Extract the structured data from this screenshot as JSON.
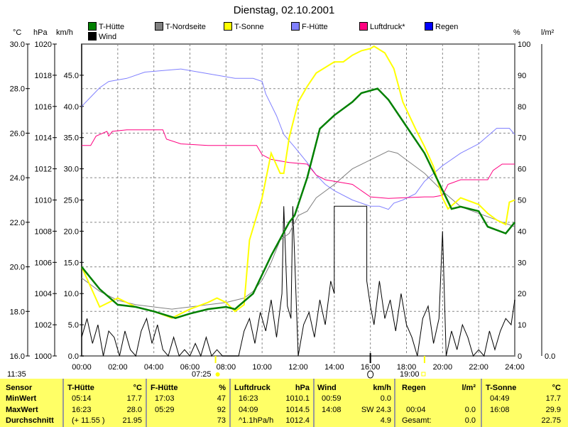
{
  "title": "Dienstag, 02.10.2001",
  "axis_units": {
    "c": "°C",
    "hpa": "hPa",
    "kmh": "km/h",
    "pct": "%",
    "lm2": "l/m²"
  },
  "legend": [
    {
      "label": "T-Hütte",
      "color": "#008000"
    },
    {
      "label": "T-Nordseite",
      "color": "#808080"
    },
    {
      "label": "T-Sonne",
      "color": "#ffff00"
    },
    {
      "label": "F-Hütte",
      "color": "#8080ff"
    },
    {
      "label": "Luftdruck*",
      "color": "#ff0080"
    },
    {
      "label": "Regen",
      "color": "#0000ff"
    },
    {
      "label": "Wind",
      "color": "#000000"
    }
  ],
  "time_left": "11:35",
  "sunrise": "07:25",
  "sunset": "19:00",
  "chart_data": {
    "type": "line",
    "title": "Dienstag, 02.10.2001",
    "x_ticks": [
      "00:00",
      "02:00",
      "04:00",
      "06:00",
      "08:00",
      "10:00",
      "12:00",
      "14:00",
      "16:00",
      "18:00",
      "20:00",
      "22:00",
      "24:00"
    ],
    "xlim": [
      0,
      24
    ],
    "axes": {
      "c": {
        "range": [
          16,
          30
        ],
        "ticks": [
          "30.0",
          "28.0",
          "26.0",
          "24.0",
          "22.0",
          "20.0",
          "18.0",
          "16.0"
        ]
      },
      "hpa": {
        "range": [
          1000,
          1020
        ],
        "ticks": [
          "1020",
          "1018",
          "1016",
          "1014",
          "1012",
          "1010",
          "1008",
          "1006",
          "1004",
          "1002",
          "1000"
        ]
      },
      "kmh": {
        "range": [
          0,
          50
        ],
        "ticks": [
          "45.0",
          "40.0",
          "35.0",
          "30.0",
          "25.0",
          "20.0",
          "15.0",
          "10.0",
          "5.0",
          "0.0"
        ]
      },
      "pct": {
        "range": [
          0,
          100
        ],
        "ticks": [
          "100",
          "90",
          "80",
          "70",
          "60",
          "50",
          "40",
          "30",
          "20",
          "10",
          "0"
        ]
      },
      "lm2": {
        "ticks": [
          "0.0"
        ]
      }
    },
    "series": [
      {
        "name": "T-Nordseite",
        "axis": "c",
        "color": "#808080",
        "x": [
          0,
          1,
          2,
          3,
          4,
          5,
          6,
          7,
          8,
          9,
          9.5,
          10,
          10.5,
          11,
          11.5,
          12,
          12.5,
          13,
          14,
          15,
          16,
          17,
          17.5,
          18,
          19,
          20,
          21,
          22,
          23,
          24
        ],
        "y": [
          19.5,
          18.9,
          18.5,
          18.3,
          18.2,
          18.1,
          18.2,
          18.3,
          18.4,
          18.6,
          18.9,
          19.4,
          20.2,
          21.2,
          21.5,
          22.3,
          22.5,
          23.1,
          23.7,
          24.4,
          24.8,
          25.2,
          25.1,
          24.8,
          24.2,
          23.4,
          22.7,
          22.4,
          22.1,
          21.8
        ]
      },
      {
        "name": "F-Hütte",
        "axis": "pct",
        "color": "#8080ff",
        "x": [
          0,
          1,
          1.5,
          2.5,
          3.5,
          5.5,
          6.5,
          7.5,
          8.5,
          9.5,
          10,
          10.2,
          10.8,
          11.2,
          11.8,
          12.5,
          13,
          13.5,
          14,
          15,
          16,
          16.5,
          17,
          17.3,
          17.8,
          18.5,
          19,
          20,
          21,
          22,
          23,
          23.7,
          24
        ],
        "y": [
          80,
          86,
          88,
          89,
          91,
          92,
          91,
          90,
          89,
          89,
          88,
          84,
          77,
          71,
          67,
          62,
          58,
          55,
          53,
          50,
          48,
          48,
          47,
          49,
          50,
          52,
          56,
          61,
          65,
          68,
          73,
          73,
          71
        ]
      },
      {
        "name": "Luftdruck*",
        "axis": "hpa",
        "color": "#ff0080",
        "x": [
          0,
          0.5,
          0.8,
          1.4,
          1.5,
          1.7,
          2.5,
          4.5,
          4.7,
          5.5,
          7,
          9,
          9.7,
          10,
          10.5,
          11.5,
          12.5,
          13,
          13.5,
          15,
          16,
          17,
          19,
          19.5,
          20,
          20.3,
          21,
          22.5,
          22.8,
          23.3,
          24
        ],
        "y": [
          1013.5,
          1013.5,
          1014.1,
          1014.4,
          1014.1,
          1014.4,
          1014.5,
          1014.5,
          1013.9,
          1013.6,
          1013.5,
          1013.5,
          1013.5,
          1012.9,
          1012.6,
          1012.4,
          1012.3,
          1011.6,
          1011.3,
          1011.0,
          1010.2,
          1010.1,
          1010.2,
          1010.2,
          1010.3,
          1011.0,
          1011.3,
          1011.3,
          1011.9,
          1012.3,
          1012.3
        ]
      },
      {
        "name": "T-Sonne",
        "axis": "c",
        "color": "#ffff00",
        "x": [
          0,
          1,
          2,
          3,
          4,
          5,
          6,
          7,
          7.5,
          8,
          8.5,
          9,
          9.3,
          10,
          10.5,
          11,
          11.2,
          11.5,
          12,
          12.5,
          13,
          14,
          14.5,
          15,
          15.5,
          16,
          16.2,
          16.8,
          17.3,
          17.8,
          18.5,
          19,
          19.5,
          20,
          20.3,
          21,
          22,
          22.5,
          23,
          23.5,
          23.7,
          24
        ],
        "y": [
          20.0,
          18.2,
          18.6,
          18.2,
          18.0,
          17.7,
          18.1,
          18.4,
          18.6,
          18.4,
          18.0,
          18.3,
          21.2,
          23.1,
          25.1,
          24.2,
          24.2,
          25.8,
          27.4,
          28.1,
          28.7,
          29.2,
          29.2,
          29.5,
          29.7,
          29.8,
          29.9,
          29.6,
          28.9,
          27.4,
          26.2,
          25.4,
          24.5,
          23.1,
          22.6,
          23.1,
          22.8,
          22.4,
          22.1,
          21.9,
          22.9,
          23.0
        ]
      },
      {
        "name": "T-Hütte",
        "axis": "c",
        "color": "#008000",
        "x": [
          0,
          1,
          2,
          3,
          4,
          5.2,
          6,
          7,
          8,
          8.5,
          9.5,
          10.5,
          11.5,
          11.8,
          12.5,
          13.2,
          14,
          15,
          15.5,
          16.4,
          17,
          18,
          19,
          19.9,
          20.5,
          21,
          22,
          22.5,
          23.5,
          24
        ],
        "y": [
          20.0,
          19.0,
          18.3,
          18.2,
          18.0,
          17.7,
          17.9,
          18.1,
          18.2,
          18.1,
          18.8,
          20.5,
          22.0,
          22.3,
          24.0,
          26.2,
          26.8,
          27.4,
          27.8,
          28.0,
          27.5,
          26.3,
          25.1,
          23.6,
          22.6,
          22.7,
          22.5,
          21.8,
          21.5,
          22.0
        ]
      },
      {
        "name": "Wind",
        "axis": "kmh",
        "color": "#000000",
        "x": [
          0,
          0.3,
          0.6,
          0.9,
          1.2,
          1.5,
          1.8,
          2.1,
          2.4,
          2.7,
          3,
          3.3,
          3.6,
          3.9,
          4.2,
          4.5,
          4.8,
          5.1,
          5.4,
          5.7,
          6,
          6.3,
          6.6,
          6.9,
          7.2,
          7.5,
          7.8,
          8.1,
          8.4,
          8.7,
          9,
          9.3,
          9.6,
          9.9,
          10.2,
          10.5,
          10.8,
          11.1,
          11.2,
          11.4,
          11.6,
          11.7,
          12,
          12.3,
          12.6,
          12.9,
          13.2,
          13.5,
          13.8,
          14,
          14,
          15.8,
          15.8,
          16,
          16.2,
          16.5,
          16.8,
          17.1,
          17.4,
          17.7,
          18,
          18.3,
          18.6,
          18.9,
          19.2,
          19.5,
          19.8,
          20,
          20.2,
          20.5,
          20.8,
          21.1,
          21.4,
          21.7,
          22,
          22.3,
          22.6,
          22.9,
          23.2,
          23.5,
          23.8,
          24
        ],
        "y": [
          3,
          6,
          2,
          5,
          0,
          4,
          3,
          0,
          4,
          1,
          0,
          4,
          6,
          2,
          5,
          1,
          0,
          3,
          0,
          1,
          0,
          2,
          0,
          3,
          0,
          1,
          0,
          0,
          0,
          0,
          4,
          6,
          2,
          7,
          4,
          9,
          3,
          10,
          24,
          8,
          6,
          24,
          0,
          5,
          7,
          3,
          9,
          5,
          12,
          10,
          24,
          24,
          12,
          8,
          5,
          12,
          6,
          9,
          4,
          10,
          5,
          3,
          0,
          6,
          8,
          2,
          6,
          20,
          0,
          4,
          1,
          5,
          3,
          0,
          1,
          0,
          4,
          1,
          4,
          6,
          5,
          9
        ]
      }
    ]
  },
  "table": {
    "headers": {
      "sensor": "Sensor",
      "thuette": "T-Hütte",
      "thuette_unit": "°C",
      "fhuette": "F-Hütte",
      "fhuette_unit": "%",
      "luft": "Luftdruck",
      "luft_unit": "hPa",
      "wind": "Wind",
      "wind_unit": "km/h",
      "regen": "Regen",
      "regen_unit": "l/m²",
      "tsonne": "T-Sonne",
      "tsonne_unit": "°C"
    },
    "rows": [
      {
        "label": "MinWert",
        "th_t": "05:14",
        "th_v": "17.7",
        "fh_t": "17:03",
        "fh_v": "47",
        "lu_t": "16:23",
        "lu_v": "1010.1",
        "wi_t": "00:59",
        "wi_v": "0.0",
        "re_t": "",
        "re_v": "",
        "ts_t": "04:49",
        "ts_v": "17.7"
      },
      {
        "label": "MaxWert",
        "th_t": "16:23",
        "th_v": "28.0",
        "fh_t": "05:29",
        "fh_v": "92",
        "lu_t": "04:09",
        "lu_v": "1014.5",
        "wi_t": "14:08",
        "wi_v": "SW 24.3",
        "re_t": "00:04",
        "re_v": "0.0",
        "ts_t": "16:08",
        "ts_v": "29.9"
      },
      {
        "label": "Durchschnitt",
        "th_t": "(+ 11.55 )",
        "th_v": "21.95",
        "fh_t": "",
        "fh_v": "73",
        "lu_t": "^1.1hPa/h",
        "lu_v": "1012.4",
        "wi_t": "",
        "wi_v": "4.9",
        "re_t": "Gesamt:",
        "re_v": "0.0",
        "ts_t": "",
        "ts_v": "22.75"
      }
    ]
  }
}
